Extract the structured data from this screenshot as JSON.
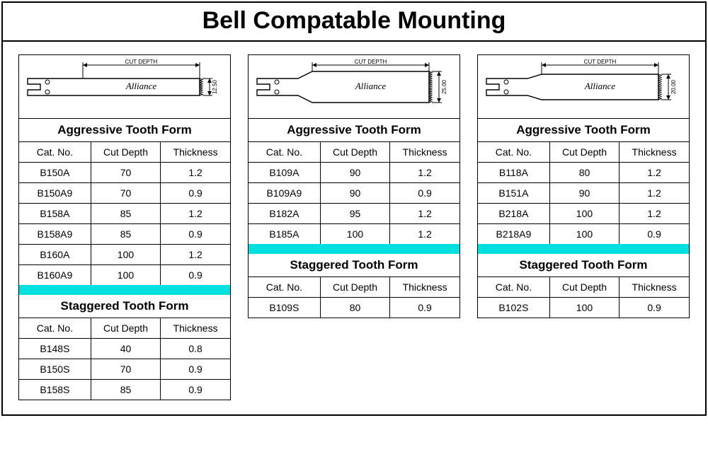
{
  "title": "Bell Compatable Mounting",
  "columns": {
    "cat": "Cat. No.",
    "cut": "Cut Depth",
    "thk": "Thickness"
  },
  "section_labels": {
    "aggressive": "Aggressive Tooth Form",
    "staggered": "Staggered Tooth Form"
  },
  "brand": "Alliance",
  "cut_depth_label": "CUT DEPTH",
  "colors": {
    "cyan": "#00e0e0",
    "border": "#000000",
    "bg": "#ffffff"
  },
  "panels": [
    {
      "height_label": "12.50",
      "aggressive": [
        {
          "cat": "B150A",
          "cut": "70",
          "thk": "1.2"
        },
        {
          "cat": "B150A9",
          "cut": "70",
          "thk": "0.9"
        },
        {
          "cat": "B158A",
          "cut": "85",
          "thk": "1.2"
        },
        {
          "cat": "B158A9",
          "cut": "85",
          "thk": "0.9"
        },
        {
          "cat": "B160A",
          "cut": "100",
          "thk": "1.2"
        },
        {
          "cat": "B160A9",
          "cut": "100",
          "thk": "0.9"
        }
      ],
      "staggered": [
        {
          "cat": "B148S",
          "cut": "40",
          "thk": "0.8"
        },
        {
          "cat": "B150S",
          "cut": "70",
          "thk": "0.9"
        },
        {
          "cat": "B158S",
          "cut": "85",
          "thk": "0.9"
        }
      ]
    },
    {
      "height_label": "25.00",
      "aggressive": [
        {
          "cat": "B109A",
          "cut": "90",
          "thk": "1.2"
        },
        {
          "cat": "B109A9",
          "cut": "90",
          "thk": "0.9"
        },
        {
          "cat": "B182A",
          "cut": "95",
          "thk": "1.2"
        },
        {
          "cat": "B185A",
          "cut": "100",
          "thk": "1.2"
        }
      ],
      "staggered": [
        {
          "cat": "B109S",
          "cut": "80",
          "thk": "0.9"
        }
      ]
    },
    {
      "height_label": "20.00",
      "aggressive": [
        {
          "cat": "B118A",
          "cut": "80",
          "thk": "1.2"
        },
        {
          "cat": "B151A",
          "cut": "90",
          "thk": "1.2"
        },
        {
          "cat": "B218A",
          "cut": "100",
          "thk": "1.2"
        },
        {
          "cat": "B218A9",
          "cut": "100",
          "thk": "0.9"
        }
      ],
      "staggered": [
        {
          "cat": "B102S",
          "cut": "100",
          "thk": "0.9"
        }
      ]
    }
  ]
}
